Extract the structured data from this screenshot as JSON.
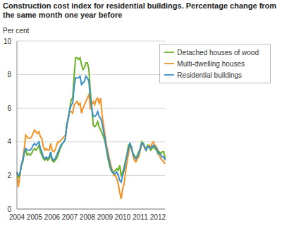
{
  "chart_data": {
    "type": "line",
    "title": "Construction cost index for residential buildings. Percentage change from the same month one year before",
    "y_label": "Per cent",
    "categories": [
      "2004",
      null,
      null,
      null,
      null,
      null,
      null,
      null,
      null,
      null,
      null,
      null,
      "2005",
      null,
      null,
      null,
      null,
      null,
      null,
      null,
      null,
      null,
      null,
      null,
      "2006",
      null,
      null,
      null,
      null,
      null,
      null,
      null,
      null,
      null,
      null,
      null,
      "2007",
      null,
      null,
      null,
      null,
      null,
      null,
      null,
      null,
      null,
      null,
      null,
      "2008",
      null,
      null,
      null,
      null,
      null,
      null,
      null,
      null,
      null,
      null,
      null,
      "2009",
      null,
      null,
      null,
      null,
      null,
      null,
      null,
      null,
      null,
      null,
      null,
      "2010",
      null,
      null,
      null,
      null,
      null,
      null,
      null,
      null,
      null,
      null,
      null,
      "2011",
      null,
      null,
      null,
      null,
      null,
      null,
      null,
      null,
      null,
      null,
      null,
      "2012",
      null,
      null,
      null,
      null,
      null
    ],
    "series": [
      {
        "name": "Multi-dwelling houses",
        "color": "#f39224",
        "values": [
          2.2,
          1.3,
          2.0,
          2.6,
          3.0,
          3.6,
          4.4,
          4.3,
          4.2,
          4.2,
          4.3,
          4.5,
          4.7,
          4.6,
          4.5,
          4.6,
          4.3,
          4.2,
          3.7,
          3.5,
          3.6,
          3.5,
          3.5,
          3.9,
          3.5,
          3.4,
          3.5,
          3.8,
          4.0,
          4.0,
          4.1,
          4.2,
          4.3,
          4.4,
          5.0,
          5.5,
          5.8,
          5.8,
          5.7,
          6.2,
          6.3,
          6.4,
          6.2,
          6.3,
          5.7,
          6.0,
          6.2,
          6.4,
          6.6,
          6.8,
          6.0,
          6.2,
          6.4,
          6.2,
          6.5,
          6.6,
          6.3,
          6.6,
          5.6,
          5.0,
          4.4,
          3.8,
          3.4,
          3.0,
          2.6,
          2.3,
          2.0,
          2.0,
          1.8,
          1.5,
          1.0,
          0.6,
          1.2,
          1.5,
          2.2,
          2.8,
          3.3,
          3.8,
          3.6,
          3.2,
          2.9,
          2.8,
          3.0,
          3.1,
          3.5,
          3.8,
          3.9,
          3.6,
          3.5,
          3.7,
          3.8,
          3.7,
          3.9,
          4.0,
          3.8,
          3.7,
          3.5,
          3.2,
          3.0,
          2.9,
          2.8,
          2.7
        ]
      },
      {
        "name": "Detached houses of wood",
        "color": "#6ab023",
        "values": [
          2.2,
          1.9,
          2.0,
          2.6,
          2.8,
          3.3,
          3.5,
          3.2,
          3.3,
          3.2,
          3.3,
          3.5,
          3.6,
          3.5,
          3.6,
          3.8,
          3.4,
          3.2,
          3.0,
          2.9,
          3.0,
          2.9,
          3.0,
          3.2,
          2.9,
          2.8,
          2.9,
          3.0,
          3.2,
          3.5,
          3.7,
          3.9,
          4.0,
          4.2,
          5.0,
          5.4,
          6.0,
          6.5,
          6.6,
          8.0,
          9.0,
          9.0,
          8.9,
          9.0,
          8.6,
          8.3,
          8.4,
          8.7,
          8.7,
          8.3,
          7.0,
          6.0,
          5.0,
          4.9,
          5.0,
          5.2,
          4.9,
          4.7,
          4.5,
          4.3,
          4.0,
          3.5,
          3.0,
          2.6,
          2.3,
          2.2,
          2.2,
          2.3,
          2.4,
          2.3,
          2.6,
          2.0,
          2.2,
          2.5,
          2.9,
          3.3,
          3.8,
          3.9,
          3.6,
          3.3,
          3.2,
          3.0,
          3.2,
          3.4,
          3.6,
          4.0,
          3.9,
          3.7,
          3.6,
          3.8,
          3.7,
          3.5,
          3.6,
          3.7,
          3.6,
          3.5,
          3.3,
          3.4,
          3.3,
          3.4,
          3.4,
          3.0
        ]
      },
      {
        "name": "Residential buildings",
        "color": "#3a8fc8",
        "values": [
          2.2,
          2.0,
          2.1,
          2.6,
          2.9,
          3.4,
          3.6,
          3.5,
          3.5,
          3.5,
          3.6,
          3.8,
          3.9,
          3.8,
          3.9,
          4.0,
          3.6,
          3.4,
          3.1,
          3.0,
          3.1,
          3.0,
          3.1,
          3.4,
          3.0,
          2.9,
          3.0,
          3.2,
          3.4,
          3.6,
          3.8,
          3.9,
          4.0,
          4.2,
          5.0,
          5.4,
          5.9,
          6.2,
          6.3,
          7.3,
          7.8,
          7.8,
          7.8,
          7.9,
          7.4,
          7.5,
          7.6,
          7.9,
          7.8,
          7.6,
          6.6,
          6.0,
          5.5,
          5.5,
          5.6,
          5.8,
          5.5,
          5.4,
          5.1,
          4.6,
          4.2,
          3.6,
          3.2,
          2.8,
          2.4,
          2.2,
          2.1,
          2.1,
          2.2,
          2.0,
          1.7,
          1.6,
          2.0,
          2.3,
          2.8,
          3.2,
          3.6,
          3.9,
          3.7,
          3.3,
          3.1,
          3.0,
          3.1,
          3.3,
          3.6,
          3.9,
          3.9,
          3.7,
          3.5,
          3.7,
          3.7,
          3.6,
          3.7,
          3.8,
          3.7,
          3.6,
          3.4,
          3.3,
          3.2,
          3.1,
          3.1,
          2.9
        ]
      }
    ],
    "ylim": [
      0,
      10
    ],
    "yticks": [
      0,
      2,
      4,
      6,
      8,
      10
    ],
    "grid": true,
    "legend": "upper right"
  }
}
